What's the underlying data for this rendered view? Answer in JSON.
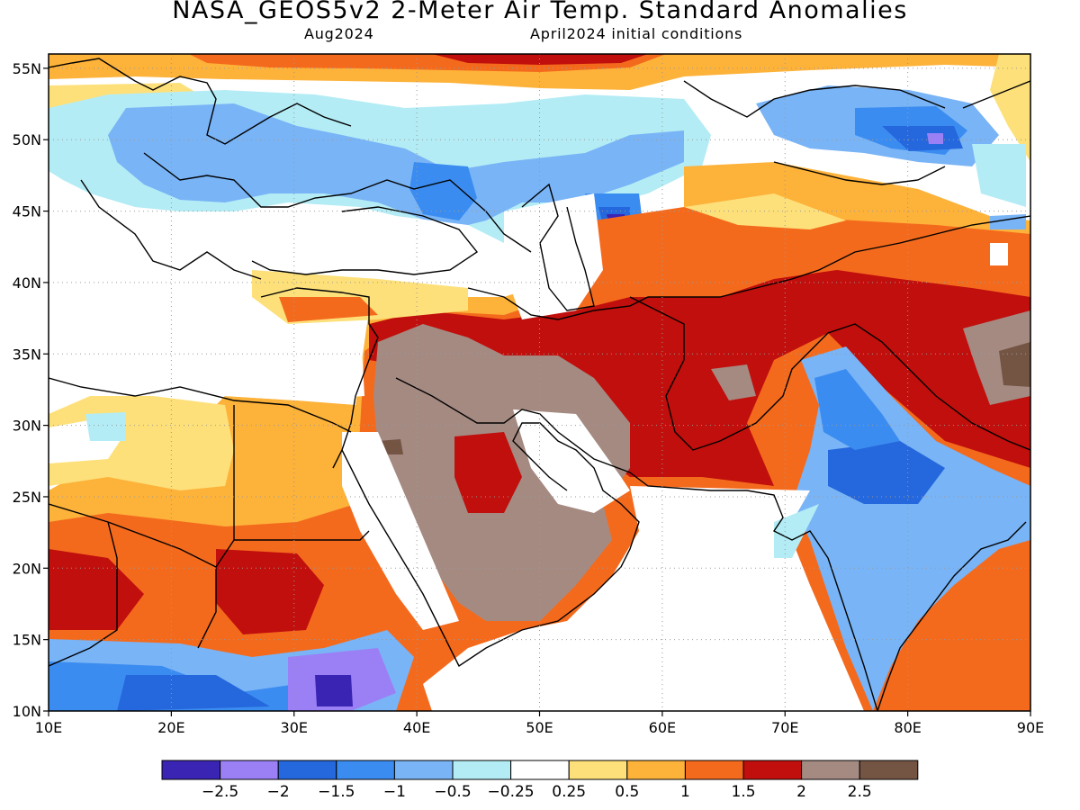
{
  "title": "NASA_GEOS5v2 2-Meter Air Temp. Standard Anomalies",
  "subtitle_left": "Aug2024",
  "subtitle_right": "April2024 initial conditions",
  "map": {
    "lon_range": [
      10,
      90
    ],
    "lat_range": [
      10,
      56
    ],
    "x_ticks": [
      "10E",
      "20E",
      "30E",
      "40E",
      "50E",
      "60E",
      "70E",
      "80E",
      "90E"
    ],
    "y_ticks": [
      "55N",
      "50N",
      "45N",
      "40N",
      "35N",
      "30N",
      "25N",
      "20N",
      "15N",
      "10N"
    ],
    "grid": "dotted"
  },
  "colorbar": {
    "colors": [
      "#3a24b4",
      "#9b80f5",
      "#2567dc",
      "#3b8cf0",
      "#79b4f6",
      "#b3ecf5",
      "#ffffff",
      "#fde07a",
      "#fdb23a",
      "#f46a1d",
      "#c00f0c",
      "#a58a82",
      "#745443"
    ],
    "labels": [
      "−2.5",
      "−2",
      "−1.5",
      "−1",
      "−0.5",
      "−0.25",
      "0.25",
      "0.5",
      "1",
      "1.5",
      "2",
      "2.5"
    ]
  }
}
